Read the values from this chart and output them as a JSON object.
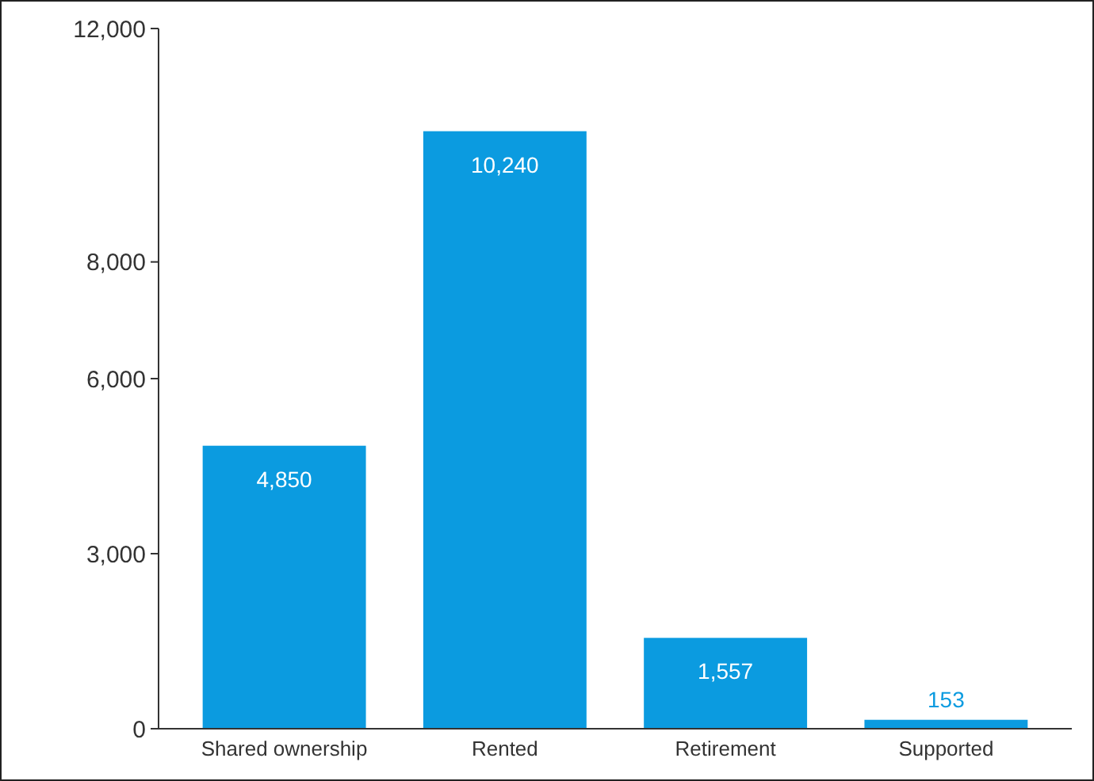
{
  "chart_data": {
    "type": "bar",
    "categories": [
      "Shared ownership",
      "Rented",
      "Retirement",
      "Supported"
    ],
    "values": [
      4850,
      10240,
      1557,
      153
    ],
    "value_labels": [
      "4,850",
      "10,240",
      "1,557",
      "153"
    ],
    "color": "#0b9be0",
    "ylim": [
      0,
      12000
    ],
    "yticks": [
      0,
      {
        "value": 3000,
        "label": "3,000"
      },
      {
        "value": 6000,
        "label": "6,000"
      },
      {
        "value": 8000,
        "label": "8,000"
      },
      {
        "value": 12000,
        "label": "12,000"
      }
    ],
    "grid": false
  }
}
